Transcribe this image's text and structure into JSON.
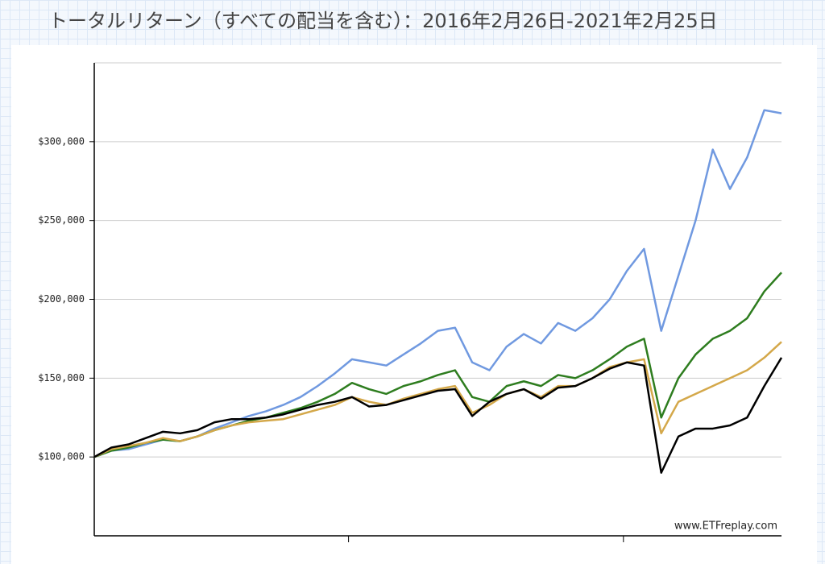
{
  "chart_data": {
    "type": "line",
    "title": "トータルリターン（すべての配当を含む）：2016年2月26日-2021年2月25日",
    "watermark": "www.ETFreplay.com",
    "x": [
      2016.15,
      2016.275,
      2016.4,
      2016.525,
      2016.65,
      2016.775,
      2016.9,
      2017.025,
      2017.15,
      2017.275,
      2017.4,
      2017.525,
      2017.65,
      2017.775,
      2017.9,
      2018.025,
      2018.15,
      2018.275,
      2018.4,
      2018.525,
      2018.65,
      2018.775,
      2018.9,
      2019.025,
      2019.15,
      2019.275,
      2019.4,
      2019.525,
      2019.65,
      2019.775,
      2019.9,
      2020.025,
      2020.15,
      2020.275,
      2020.4,
      2020.525,
      2020.65,
      2020.775,
      2020.9,
      2021.025,
      2021.15
    ],
    "xlim": [
      2016.15,
      2021.15
    ],
    "xticks": [
      2018,
      2020
    ],
    "ylim": [
      50000,
      350000
    ],
    "yticks": [
      {
        "value": 100000,
        "label": "$100,000"
      },
      {
        "value": 150000,
        "label": "$150,000"
      },
      {
        "value": 200000,
        "label": "$200,000"
      },
      {
        "value": 250000,
        "label": "$250,000"
      },
      {
        "value": 300000,
        "label": "$300,000"
      }
    ],
    "grid": true,
    "series": [
      {
        "color": "#7099e0",
        "values": [
          100000,
          104000,
          105000,
          108000,
          111000,
          110000,
          113000,
          118000,
          122000,
          126000,
          129000,
          133000,
          138000,
          145000,
          153000,
          162000,
          160000,
          158000,
          165000,
          172000,
          180000,
          182000,
          160000,
          155000,
          170000,
          178000,
          172000,
          185000,
          180000,
          188000,
          200000,
          218000,
          232000,
          180000,
          215000,
          250000,
          295000,
          270000,
          290000,
          320000,
          318000
        ]
      },
      {
        "color": "#2e7d1f",
        "values": [
          100000,
          104000,
          106000,
          109000,
          111000,
          110000,
          113000,
          117000,
          120000,
          123000,
          125000,
          128000,
          131000,
          135000,
          140000,
          147000,
          143000,
          140000,
          145000,
          148000,
          152000,
          155000,
          138000,
          135000,
          145000,
          148000,
          145000,
          152000,
          150000,
          155000,
          162000,
          170000,
          175000,
          125000,
          150000,
          165000,
          175000,
          180000,
          188000,
          205000,
          217000
        ]
      },
      {
        "color": "#d4a84a",
        "values": [
          100000,
          105000,
          107000,
          109000,
          112000,
          110000,
          113000,
          117000,
          120000,
          122000,
          123000,
          124000,
          127000,
          130000,
          133000,
          138000,
          135000,
          133000,
          137000,
          140000,
          143000,
          145000,
          128000,
          133000,
          140000,
          143000,
          138000,
          145000,
          145000,
          150000,
          157000,
          160000,
          162000,
          115000,
          135000,
          140000,
          145000,
          150000,
          155000,
          163000,
          173000
        ]
      },
      {
        "color": "#000000",
        "values": [
          100000,
          106000,
          108000,
          112000,
          116000,
          115000,
          117000,
          122000,
          124000,
          124000,
          125000,
          127000,
          130000,
          133000,
          135000,
          138000,
          132000,
          133000,
          136000,
          139000,
          142000,
          143000,
          126000,
          135000,
          140000,
          143000,
          137000,
          144000,
          145000,
          150000,
          156000,
          160000,
          158000,
          90000,
          113000,
          118000,
          118000,
          120000,
          125000,
          145000,
          163000
        ]
      }
    ]
  }
}
